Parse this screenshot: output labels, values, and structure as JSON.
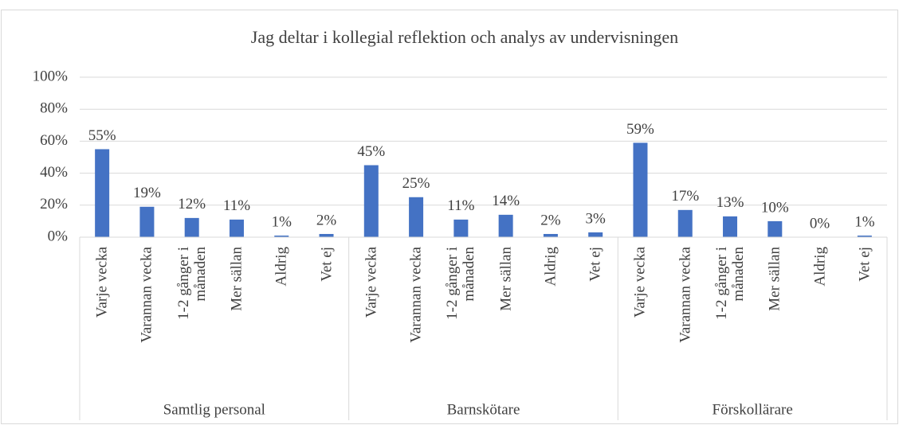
{
  "chart_data": {
    "type": "bar",
    "title": "Jag deltar i kollegial reflektion och analys av undervisningen",
    "color": "#4472c4",
    "grid": true,
    "ylim": [
      0,
      100
    ],
    "yticks": [
      {
        "value": 0,
        "label": "0%"
      },
      {
        "value": 20,
        "label": "20%"
      },
      {
        "value": 40,
        "label": "40%"
      },
      {
        "value": 60,
        "label": "60%"
      },
      {
        "value": 80,
        "label": "80%"
      },
      {
        "value": 100,
        "label": "100%"
      }
    ],
    "groups": [
      {
        "name": "Samtlig personal",
        "categories": [
          "Varje vecka",
          "Varannan vecka",
          "1-2 gånger i månaden",
          "Mer sällan",
          "Aldrig",
          "Vet ej"
        ],
        "values": [
          55,
          19,
          12,
          11,
          1,
          2
        ],
        "value_labels": [
          "55%",
          "19%",
          "12%",
          "11%",
          "1%",
          "2%"
        ]
      },
      {
        "name": "Barnskötare",
        "categories": [
          "Varje vecka",
          "Varannan vecka",
          "1-2 gånger i månaden",
          "Mer sällan",
          "Aldrig",
          "Vet ej"
        ],
        "values": [
          45,
          25,
          11,
          14,
          2,
          3
        ],
        "value_labels": [
          "45%",
          "25%",
          "11%",
          "14%",
          "2%",
          "3%"
        ]
      },
      {
        "name": "Förskollärare",
        "categories": [
          "Varje vecka",
          "Varannan vecka",
          "1-2 gånger i månaden",
          "Mer sällan",
          "Aldrig",
          "Vet ej"
        ],
        "values": [
          59,
          17,
          13,
          10,
          0,
          1
        ],
        "value_labels": [
          "59%",
          "17%",
          "13%",
          "10%",
          "0%",
          "1%"
        ]
      }
    ]
  }
}
